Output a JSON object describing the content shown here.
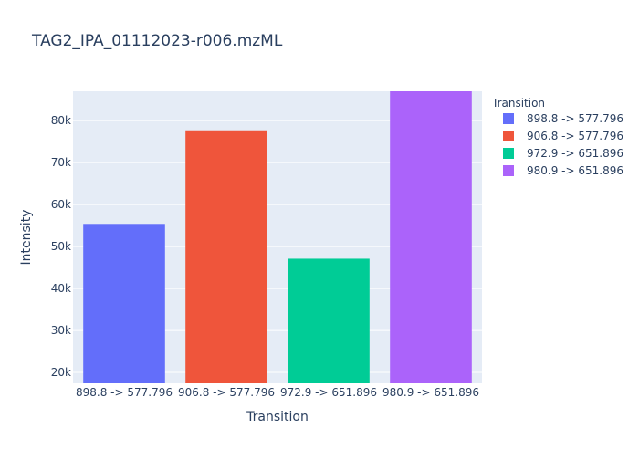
{
  "chart_data": {
    "type": "bar",
    "title": "TAG2_IPA_01112023-r006.mzML",
    "xlabel": "Transition",
    "ylabel": "Intensity",
    "categories": [
      "898.8 -> 577.796",
      "906.8 -> 577.796",
      "972.9 -> 651.896",
      "980.9 -> 651.896"
    ],
    "values": [
      55400,
      77700,
      47100,
      88000
    ],
    "colors": [
      "#636efa",
      "#EF553B",
      "#00cc96",
      "#ab63fa"
    ],
    "ylim": [
      17400,
      87000
    ],
    "yticks": [
      20000,
      30000,
      40000,
      50000,
      60000,
      70000,
      80000
    ],
    "ytick_labels": [
      "20k",
      "30k",
      "40k",
      "50k",
      "60k",
      "70k",
      "80k"
    ],
    "grid": true,
    "legend": {
      "title": "Transition",
      "placement": "right",
      "entries": [
        "898.8 -> 577.796",
        "906.8 -> 577.796",
        "972.9 -> 651.896",
        "980.9 -> 651.896"
      ]
    }
  }
}
